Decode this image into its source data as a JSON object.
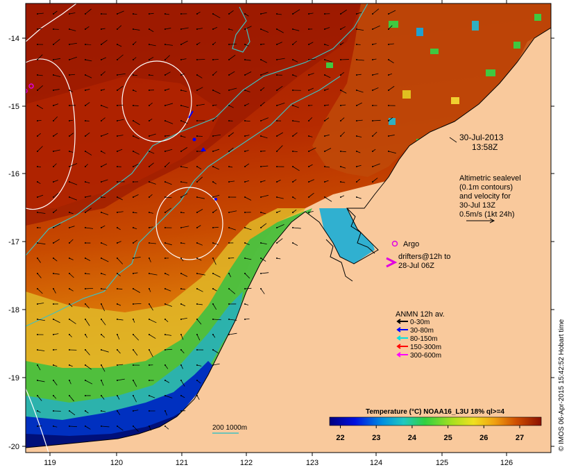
{
  "map": {
    "lon_ticks": [
      "119",
      "120",
      "121",
      "122",
      "123",
      "124",
      "125",
      "126"
    ],
    "lat_ticks": [
      "-14",
      "-15",
      "-16",
      "-17",
      "-18",
      "-19",
      "-20"
    ],
    "colors": {
      "land": "#f9c99c",
      "sst_warm_dark": "#9c1a00",
      "sst_warm": "#c33b00",
      "sst_mid": "#e07a10",
      "sst_yellow": "#f0d030",
      "sst_green": "#40c840",
      "sst_cyan": "#30b0c0",
      "sst_blue": "#0028b0",
      "sst_navy": "#00107a",
      "isobath": "#40c0c0",
      "sealevel_contour": "#ffffff",
      "coastline": "#000000",
      "argo": "#e000e0"
    }
  },
  "annotations": {
    "date": "30-Jul-2013",
    "time": "13:58Z",
    "altimetry_lines": [
      "Altimetric sealevel",
      "(0.1m contours)",
      "and velocity for",
      "30-Jul 13Z",
      "0.5m/s (1kt 24h)"
    ],
    "argo_label": "Argo",
    "drifters_lines": [
      "drifters@12h to",
      "28-Jul 06Z"
    ],
    "isobath_label": "200  1000m"
  },
  "legend": {
    "title": "ANMN 12h av.",
    "items": [
      {
        "label": "0-30m",
        "color": "#000000"
      },
      {
        "label": "30-80m",
        "color": "#0000ff"
      },
      {
        "label": "80-150m",
        "color": "#00e0e0"
      },
      {
        "label": "150-300m",
        "color": "#ff0000"
      },
      {
        "label": "300-600m",
        "color": "#ff00ff"
      }
    ]
  },
  "colorbar": {
    "title": "Temperature (°C) NOAA16_L3U 18% ql>=4",
    "ticks": [
      "22",
      "23",
      "24",
      "25",
      "26",
      "27"
    ],
    "min": 21.7,
    "max": 27.6
  },
  "credit": "© IMOS 06-Apr-2015 15:42:52 Hobart time"
}
